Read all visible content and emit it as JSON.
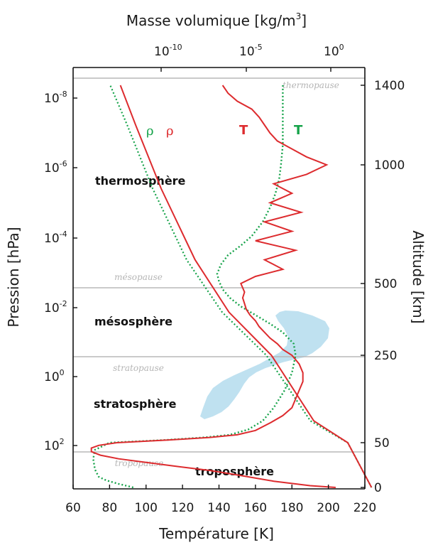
{
  "chart_data": {
    "type": "line",
    "title": "",
    "top_axis": {
      "label": "Masse volumique [kg/m³]",
      "scale": "log",
      "ticks": [
        {
          "base": "10",
          "exp": "-10"
        },
        {
          "base": "10",
          "exp": "-5"
        },
        {
          "base": "10",
          "exp": "0"
        }
      ]
    },
    "x_axis": {
      "label": "Température [K]",
      "range": [
        60,
        220
      ],
      "ticks": [
        "60",
        "80",
        "100",
        "120",
        "140",
        "160",
        "180",
        "200",
        "220"
      ]
    },
    "left_axis": {
      "label": "Pression [hPa]",
      "scale": "log",
      "ticks": [
        {
          "base": "10",
          "exp": "-8"
        },
        {
          "base": "10",
          "exp": "-6"
        },
        {
          "base": "10",
          "exp": "-4"
        },
        {
          "base": "10",
          "exp": "-2"
        },
        {
          "base": "10",
          "exp": "0"
        },
        {
          "base": "10",
          "exp": "2"
        }
      ]
    },
    "right_axis": {
      "label": "Altitude [km]",
      "ticks": [
        "0",
        "50",
        "250",
        "500",
        "1000",
        "1400"
      ]
    },
    "layers": [
      {
        "name": "thermosphère",
        "boundary": "thermopause"
      },
      {
        "name": "mésosphère",
        "boundary": "mésopause"
      },
      {
        "name": "stratosphère",
        "boundary": "stratopause"
      },
      {
        "name": "troposphère",
        "boundary": "tropopause"
      }
    ],
    "series": [
      {
        "name": "T",
        "style": "measured",
        "color": "#dd2b2e",
        "points": [
          [
            204,
            0
          ],
          [
            190,
            2
          ],
          [
            170,
            7
          ],
          [
            150,
            14
          ],
          [
            135,
            19
          ],
          [
            115,
            24
          ],
          [
            100,
            28
          ],
          [
            85,
            32
          ],
          [
            75,
            36
          ],
          [
            70,
            40
          ],
          [
            70,
            44
          ],
          [
            74,
            47
          ],
          [
            84,
            50
          ],
          [
            112,
            56
          ],
          [
            135,
            62
          ],
          [
            150,
            68
          ],
          [
            160,
            78
          ],
          [
            168,
            95
          ],
          [
            175,
            112
          ],
          [
            180,
            130
          ],
          [
            182,
            150
          ],
          [
            184,
            170
          ],
          [
            186,
            190
          ],
          [
            186,
            210
          ],
          [
            184,
            230
          ],
          [
            180,
            250
          ],
          [
            175,
            270
          ],
          [
            172,
            290
          ],
          [
            168,
            310
          ],
          [
            165,
            330
          ],
          [
            162,
            350
          ],
          [
            160,
            370
          ],
          [
            157,
            390
          ],
          [
            155,
            410
          ],
          [
            154,
            430
          ],
          [
            153,
            450
          ],
          [
            154,
            470
          ],
          [
            152,
            500
          ],
          [
            160,
            530
          ],
          [
            175,
            560
          ],
          [
            165,
            600
          ],
          [
            182,
            640
          ],
          [
            160,
            680
          ],
          [
            180,
            720
          ],
          [
            165,
            760
          ],
          [
            185,
            800
          ],
          [
            168,
            840
          ],
          [
            180,
            880
          ],
          [
            170,
            920
          ],
          [
            188,
            960
          ],
          [
            199,
            1000
          ],
          [
            188,
            1040
          ],
          [
            180,
            1080
          ],
          [
            172,
            1120
          ],
          [
            168,
            1160
          ],
          [
            165,
            1200
          ],
          [
            162,
            1240
          ],
          [
            158,
            1280
          ],
          [
            150,
            1320
          ],
          [
            145,
            1360
          ],
          [
            142,
            1400
          ]
        ]
      },
      {
        "name": "T",
        "style": "model",
        "color": "#16a34a",
        "points": [
          [
            93,
            0
          ],
          [
            85,
            4
          ],
          [
            78,
            8
          ],
          [
            74,
            12
          ],
          [
            72,
            20
          ],
          [
            71,
            32
          ],
          [
            72,
            42
          ],
          [
            80,
            50
          ],
          [
            110,
            56
          ],
          [
            132,
            62
          ],
          [
            146,
            68
          ],
          [
            156,
            80
          ],
          [
            164,
            100
          ],
          [
            170,
            130
          ],
          [
            176,
            170
          ],
          [
            180,
            210
          ],
          [
            182,
            250
          ],
          [
            181,
            290
          ],
          [
            175,
            330
          ],
          [
            168,
            360
          ],
          [
            160,
            390
          ],
          [
            152,
            420
          ],
          [
            146,
            450
          ],
          [
            142,
            480
          ],
          [
            140,
            510
          ],
          [
            139,
            540
          ],
          [
            141,
            580
          ],
          [
            145,
            620
          ],
          [
            152,
            660
          ],
          [
            158,
            700
          ],
          [
            164,
            760
          ],
          [
            168,
            820
          ],
          [
            171,
            880
          ],
          [
            173,
            940
          ],
          [
            174,
            1000
          ],
          [
            175,
            1100
          ],
          [
            175,
            1200
          ],
          [
            175,
            1300
          ],
          [
            175,
            1400
          ]
        ]
      },
      {
        "name": "ρ",
        "style": "measured",
        "color": "#dd2b2e",
        "x": "log10 density",
        "points": [
          [
            2.4,
            0
          ],
          [
            1,
            50
          ],
          [
            -1,
            100
          ],
          [
            -3.5,
            250
          ],
          [
            -6,
            400
          ],
          [
            -8,
            600
          ],
          [
            -10,
            900
          ],
          [
            -11.5,
            1200
          ],
          [
            -12.4,
            1400
          ]
        ]
      },
      {
        "name": "ρ",
        "style": "model",
        "color": "#16a34a",
        "x": "log10 density",
        "points": [
          [
            2.4,
            0
          ],
          [
            1,
            50
          ],
          [
            -1.2,
            100
          ],
          [
            -3.8,
            250
          ],
          [
            -6.4,
            400
          ],
          [
            -8.5,
            600
          ],
          [
            -10.5,
            900
          ],
          [
            -12,
            1200
          ],
          [
            -13,
            1400
          ]
        ]
      }
    ],
    "variability_band": {
      "color": "#bfe1f0"
    }
  },
  "labels": {
    "rho_green": "ρ",
    "rho_red": "ρ",
    "t_red": "T",
    "t_green": "T"
  },
  "colors": {
    "measured": "#dd2b2e",
    "model": "#16a34a",
    "band": "#bfe1f0",
    "boundary": "#b8b8b8"
  }
}
